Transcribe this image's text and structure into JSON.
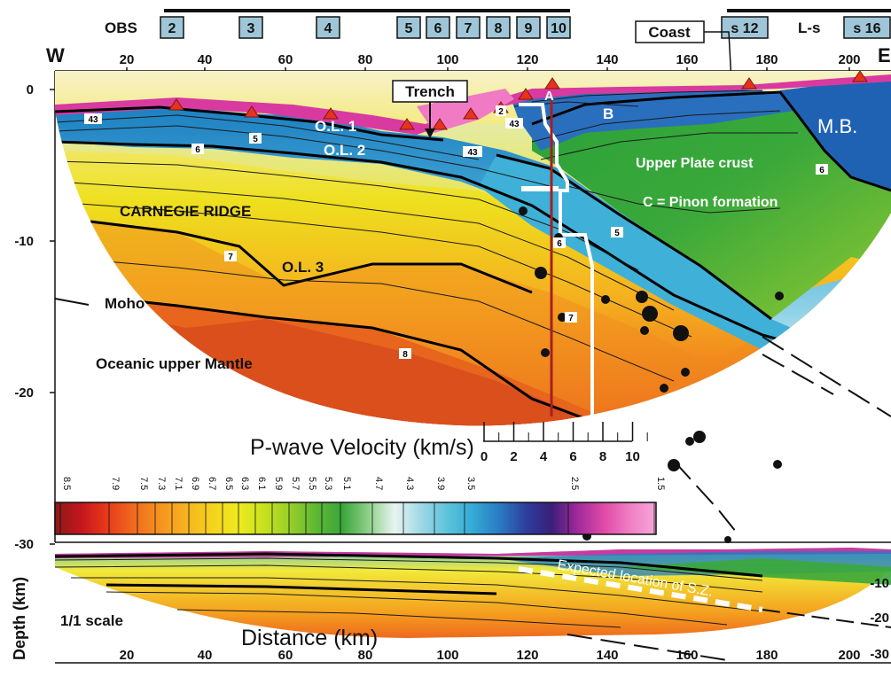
{
  "header": {
    "obs_label": "OBS",
    "obs_stations": [
      "2",
      "3",
      "4",
      "5",
      "6",
      "7",
      "8",
      "9",
      "10"
    ],
    "land_stations": [
      "s 12",
      "s 16"
    ],
    "land_label": "L-s",
    "coast_label": "Coast",
    "trench_label": "Trench",
    "west_label": "W",
    "east_label": "E"
  },
  "axes": {
    "x_ticks_top": [
      "20",
      "40",
      "60",
      "80",
      "100",
      "120",
      "140",
      "160",
      "180",
      "200"
    ],
    "x_ticks_bottom": [
      "20",
      "40",
      "60",
      "80",
      "100",
      "120",
      "140",
      "160",
      "180",
      "200"
    ],
    "y_ticks": [
      "0",
      "-10",
      "-20",
      "-30"
    ],
    "bottom_y_ticks": [
      "-10",
      "-20",
      "-30"
    ],
    "xlabel": "Distance (km)",
    "ylabel": "Depth (km)"
  },
  "annotations": {
    "ol1": "O.L. 1",
    "ol2": "O.L. 2",
    "ol3": "O.L. 3",
    "carnegie": "CARNEGIE RIDGE",
    "moho": "Moho",
    "mantle": "Oceanic upper Mantle",
    "upper_plate": "Upper Plate crust",
    "pinon": "C = Pinon formation",
    "mb": "M.B.",
    "a": "A",
    "b": "B",
    "expected_sz": "Expected location of S.Z.",
    "scale_note": "1/1 scale",
    "contour_labels": [
      "43",
      "6",
      "5",
      "2",
      "43",
      "43",
      "7",
      "5",
      "6",
      "7",
      "8",
      "6"
    ]
  },
  "velocity_legend": {
    "title": "P-wave Velocity (km/s)",
    "ticks": [
      "8.5",
      "7.9",
      "7.5",
      "7.3",
      "7.1",
      "6.9",
      "6.7",
      "6.5",
      "6.3",
      "6.1",
      "5.9",
      "5.7",
      "5.5",
      "5.3",
      "5.1",
      "4.7",
      "4.3",
      "3.9",
      "3.5",
      "2.5",
      "1.5"
    ],
    "colors": [
      "#8b1a1a",
      "#c4161c",
      "#e83a1a",
      "#f06a1e",
      "#f5921e",
      "#f7b21f",
      "#f5d21e",
      "#eeea1e",
      "#c7e21e",
      "#96cf2a",
      "#5db832",
      "#3aa63a",
      "#8fd08a",
      "#e8f4f0",
      "#9fd8e4",
      "#5ec3dc",
      "#33a9d4",
      "#2a7cc4",
      "#2d3f9e",
      "#3a1f7a",
      "#a02a9a",
      "#e04aa8",
      "#f07fc4",
      "#f7a8d8"
    ]
  },
  "velocity_profile": {
    "ticks": [
      "0",
      "2",
      "4",
      "6",
      "8",
      "10"
    ]
  }
}
